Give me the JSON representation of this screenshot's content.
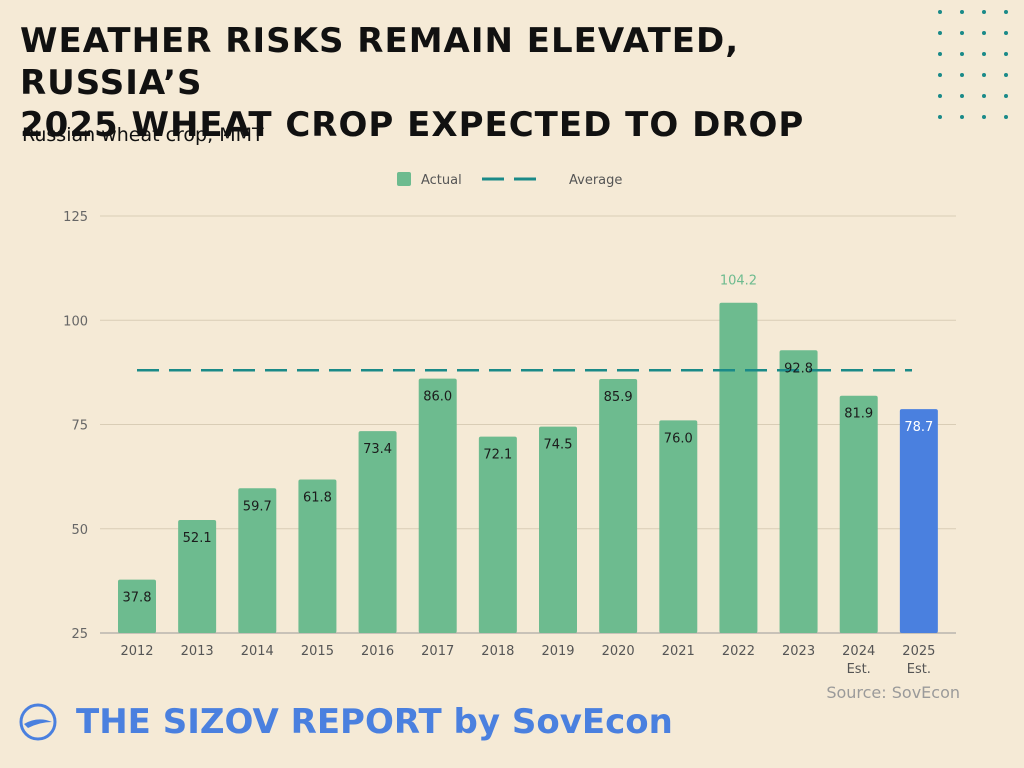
{
  "header": {
    "title_line1": "WEATHER RISKS REMAIN ELEVATED, RUSSIA’S",
    "title_line2": "2025 WHEAT CROP EXPECTED TO DROP",
    "subtitle": "Russian wheat crop, MMT"
  },
  "footer": {
    "source": "Source: SovEcon",
    "brand": "THE SIZOV REPORT by SovEcon"
  },
  "colors": {
    "actual": "#6dbb8f",
    "estimate_2025": "#4a80df",
    "average": "#1a8a88",
    "background": "#f5ead6",
    "brand": "#4a80df"
  },
  "chart_data": {
    "type": "bar",
    "title": "Russian wheat crop, MMT",
    "categories": [
      [
        "2012"
      ],
      [
        "2013"
      ],
      [
        "2014"
      ],
      [
        "2015"
      ],
      [
        "2016"
      ],
      [
        "2017"
      ],
      [
        "2018"
      ],
      [
        "2019"
      ],
      [
        "2020"
      ],
      [
        "2021"
      ],
      [
        "2022"
      ],
      [
        "2023"
      ],
      [
        "2024",
        "Est."
      ],
      [
        "2025",
        "Est."
      ]
    ],
    "series": [
      {
        "name": "Actual",
        "values": [
          37.8,
          52.1,
          59.7,
          61.8,
          73.4,
          86.0,
          72.1,
          74.5,
          85.9,
          76.0,
          104.2,
          92.8,
          81.9,
          78.7
        ],
        "labels": [
          "37.8",
          "52.1",
          "59.7",
          "61.8",
          "73.4",
          "86.0",
          "72.1",
          "74.5",
          "85.9",
          "76.0",
          "104.2",
          "92.8",
          "81.9",
          "78.7"
        ]
      },
      {
        "name": "Average",
        "type": "dashed-line",
        "value": 88
      }
    ],
    "highlight_index": 13,
    "legend": [
      "Actual",
      "Average"
    ],
    "legend_position": "top-center",
    "y_ticks": [
      "25",
      "50",
      "75",
      "100",
      "125"
    ],
    "ylim": [
      25,
      125
    ],
    "grid": true
  }
}
